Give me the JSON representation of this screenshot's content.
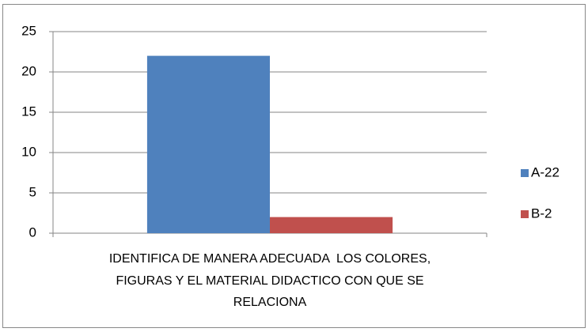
{
  "chart_data": {
    "type": "bar",
    "categories": [
      "IDENTIFICA DE MANERA ADECUADA  LOS COLORES, FIGURAS Y EL MATERIAL DIDACTICO CON QUE SE RELACIONA"
    ],
    "series": [
      {
        "name": "A-22",
        "color": "#4f81bd",
        "values": [
          22
        ]
      },
      {
        "name": "B-2",
        "color": "#c0504d",
        "values": [
          2
        ]
      }
    ],
    "ylim": [
      0,
      25
    ],
    "yticks": [
      0,
      5,
      10,
      15,
      20,
      25
    ],
    "grid": true,
    "legend": "right"
  }
}
